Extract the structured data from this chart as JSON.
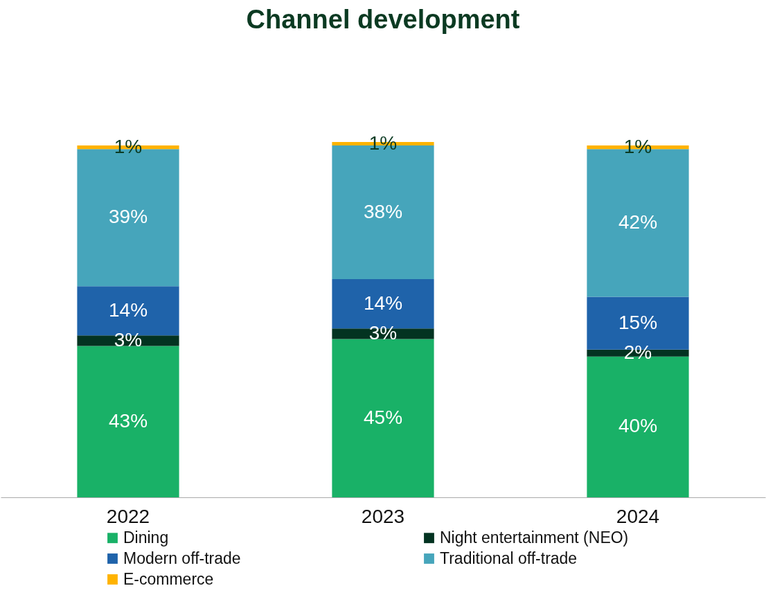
{
  "chart_data": {
    "type": "bar",
    "title": "Channel development",
    "categories": [
      "2022",
      "2023",
      "2024"
    ],
    "stacked": true,
    "legend": "bottom",
    "series": [
      {
        "name": "Dining",
        "color": "#19b167",
        "values": [
          43,
          45,
          40
        ],
        "value_labels": [
          "43%",
          "45%",
          "40%"
        ]
      },
      {
        "name": "Night entertainment (NEO)",
        "color": "#033321",
        "values": [
          3,
          3,
          2
        ],
        "value_labels": [
          "3%",
          "3%",
          "2%"
        ]
      },
      {
        "name": "Modern off-trade",
        "color": "#1f63aa",
        "values": [
          14,
          14,
          15
        ],
        "value_labels": [
          "14%",
          "14%",
          "15%"
        ]
      },
      {
        "name": "Traditional off-trade",
        "color": "#46a5bb",
        "values": [
          39,
          38,
          42
        ],
        "value_labels": [
          "39%",
          "38%",
          "42%"
        ]
      },
      {
        "name": "E-commerce",
        "color": "#ffb300",
        "values": [
          1,
          1,
          1
        ],
        "value_labels": [
          "1%",
          "1%",
          "1%"
        ]
      }
    ]
  }
}
